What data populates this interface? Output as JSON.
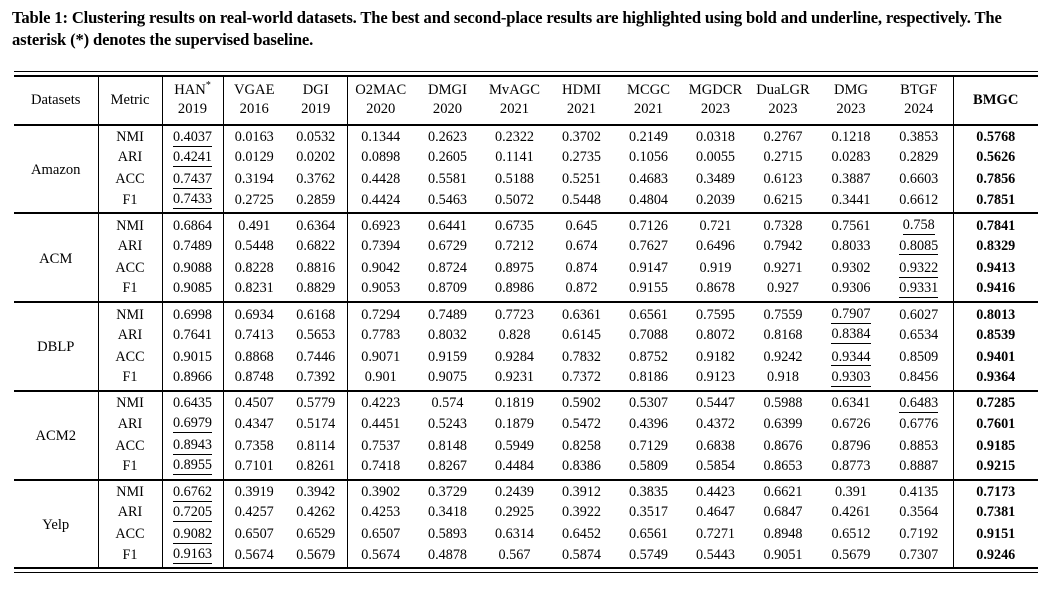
{
  "caption": {
    "text": "Table 1: Clustering results on real-world datasets. The best and second-place results are highlighted using bold and underline, respectively. The asterisk (*) denotes the supervised baseline."
  },
  "table": {
    "dataset_header": "Datasets",
    "metric_header": "Metric",
    "methods": [
      {
        "name": "HAN*",
        "year": "2019"
      },
      {
        "name": "VGAE",
        "year": "2016"
      },
      {
        "name": "DGI",
        "year": "2019"
      },
      {
        "name": "O2MAC",
        "year": "2020"
      },
      {
        "name": "DMGI",
        "year": "2020"
      },
      {
        "name": "MvAGC",
        "year": "2021"
      },
      {
        "name": "HDMI",
        "year": "2021"
      },
      {
        "name": "MCGC",
        "year": "2021"
      },
      {
        "name": "MGDCR",
        "year": "2023"
      },
      {
        "name": "DuaLGR",
        "year": "2023"
      },
      {
        "name": "DMG",
        "year": "2023"
      },
      {
        "name": "BTGF",
        "year": "2024"
      },
      {
        "name": "BMGC",
        "year": ""
      }
    ],
    "bold_column_index": 12,
    "groups": [
      {
        "dataset": "Amazon",
        "rows": [
          {
            "metric": "NMI",
            "underline_col": 0,
            "values": [
              "0.4037",
              "0.0163",
              "0.0532",
              "0.1344",
              "0.2623",
              "0.2322",
              "0.3702",
              "0.2149",
              "0.0318",
              "0.2767",
              "0.1218",
              "0.3853",
              "0.5768"
            ]
          },
          {
            "metric": "ARI",
            "underline_col": 0,
            "values": [
              "0.4241",
              "0.0129",
              "0.0202",
              "0.0898",
              "0.2605",
              "0.1141",
              "0.2735",
              "0.1056",
              "0.0055",
              "0.2715",
              "0.0283",
              "0.2829",
              "0.5626"
            ]
          },
          {
            "metric": "ACC",
            "underline_col": 0,
            "values": [
              "0.7437",
              "0.3194",
              "0.3762",
              "0.4428",
              "0.5581",
              "0.5188",
              "0.5251",
              "0.4683",
              "0.3489",
              "0.6123",
              "0.3887",
              "0.6603",
              "0.7856"
            ]
          },
          {
            "metric": "F1",
            "underline_col": 0,
            "values": [
              "0.7433",
              "0.2725",
              "0.2859",
              "0.4424",
              "0.5463",
              "0.5072",
              "0.5448",
              "0.4804",
              "0.2039",
              "0.6215",
              "0.3441",
              "0.6612",
              "0.7851"
            ]
          }
        ]
      },
      {
        "dataset": "ACM",
        "rows": [
          {
            "metric": "NMI",
            "underline_col": 11,
            "values": [
              "0.6864",
              "0.491",
              "0.6364",
              "0.6923",
              "0.6441",
              "0.6735",
              "0.645",
              "0.7126",
              "0.721",
              "0.7328",
              "0.7561",
              "0.758",
              "0.7841"
            ]
          },
          {
            "metric": "ARI",
            "underline_col": 11,
            "values": [
              "0.7489",
              "0.5448",
              "0.6822",
              "0.7394",
              "0.6729",
              "0.7212",
              "0.674",
              "0.7627",
              "0.6496",
              "0.7942",
              "0.8033",
              "0.8085",
              "0.8329"
            ]
          },
          {
            "metric": "ACC",
            "underline_col": 11,
            "values": [
              "0.9088",
              "0.8228",
              "0.8816",
              "0.9042",
              "0.8724",
              "0.8975",
              "0.874",
              "0.9147",
              "0.919",
              "0.9271",
              "0.9302",
              "0.9322",
              "0.9413"
            ]
          },
          {
            "metric": "F1",
            "underline_col": 11,
            "values": [
              "0.9085",
              "0.8231",
              "0.8829",
              "0.9053",
              "0.8709",
              "0.8986",
              "0.872",
              "0.9155",
              "0.8678",
              "0.927",
              "0.9306",
              "0.9331",
              "0.9416"
            ]
          }
        ]
      },
      {
        "dataset": "DBLP",
        "rows": [
          {
            "metric": "NMI",
            "underline_col": 10,
            "values": [
              "0.6998",
              "0.6934",
              "0.6168",
              "0.7294",
              "0.7489",
              "0.7723",
              "0.6361",
              "0.6561",
              "0.7595",
              "0.7559",
              "0.7907",
              "0.6027",
              "0.8013"
            ]
          },
          {
            "metric": "ARI",
            "underline_col": 10,
            "values": [
              "0.7641",
              "0.7413",
              "0.5653",
              "0.7783",
              "0.8032",
              "0.828",
              "0.6145",
              "0.7088",
              "0.8072",
              "0.8168",
              "0.8384",
              "0.6534",
              "0.8539"
            ]
          },
          {
            "metric": "ACC",
            "underline_col": 10,
            "values": [
              "0.9015",
              "0.8868",
              "0.7446",
              "0.9071",
              "0.9159",
              "0.9284",
              "0.7832",
              "0.8752",
              "0.9182",
              "0.9242",
              "0.9344",
              "0.8509",
              "0.9401"
            ]
          },
          {
            "metric": "F1",
            "underline_col": 10,
            "values": [
              "0.8966",
              "0.8748",
              "0.7392",
              "0.901",
              "0.9075",
              "0.9231",
              "0.7372",
              "0.8186",
              "0.9123",
              "0.918",
              "0.9303",
              "0.8456",
              "0.9364"
            ]
          }
        ]
      },
      {
        "dataset": "ACM2",
        "rows": [
          {
            "metric": "NMI",
            "underline_col": 11,
            "values": [
              "0.6435",
              "0.4507",
              "0.5779",
              "0.4223",
              "0.574",
              "0.1819",
              "0.5902",
              "0.5307",
              "0.5447",
              "0.5988",
              "0.6341",
              "0.6483",
              "0.7285"
            ]
          },
          {
            "metric": "ARI",
            "underline_col": 0,
            "values": [
              "0.6979",
              "0.4347",
              "0.5174",
              "0.4451",
              "0.5243",
              "0.1879",
              "0.5472",
              "0.4396",
              "0.4372",
              "0.6399",
              "0.6726",
              "0.6776",
              "0.7601"
            ]
          },
          {
            "metric": "ACC",
            "underline_col": 0,
            "values": [
              "0.8943",
              "0.7358",
              "0.8114",
              "0.7537",
              "0.8148",
              "0.5949",
              "0.8258",
              "0.7129",
              "0.6838",
              "0.8676",
              "0.8796",
              "0.8853",
              "0.9185"
            ]
          },
          {
            "metric": "F1",
            "underline_col": 0,
            "values": [
              "0.8955",
              "0.7101",
              "0.8261",
              "0.7418",
              "0.8267",
              "0.4484",
              "0.8386",
              "0.5809",
              "0.5854",
              "0.8653",
              "0.8773",
              "0.8887",
              "0.9215"
            ]
          }
        ]
      },
      {
        "dataset": "Yelp",
        "rows": [
          {
            "metric": "NMI",
            "underline_col": 0,
            "values": [
              "0.6762",
              "0.3919",
              "0.3942",
              "0.3902",
              "0.3729",
              "0.2439",
              "0.3912",
              "0.3835",
              "0.4423",
              "0.6621",
              "0.391",
              "0.4135",
              "0.7173"
            ]
          },
          {
            "metric": "ARI",
            "underline_col": 0,
            "values": [
              "0.7205",
              "0.4257",
              "0.4262",
              "0.4253",
              "0.3418",
              "0.2925",
              "0.3922",
              "0.3517",
              "0.4647",
              "0.6847",
              "0.4261",
              "0.3564",
              "0.7381"
            ]
          },
          {
            "metric": "ACC",
            "underline_col": 0,
            "values": [
              "0.9082",
              "0.6507",
              "0.6529",
              "0.6507",
              "0.5893",
              "0.6314",
              "0.6452",
              "0.6561",
              "0.7271",
              "0.8948",
              "0.6512",
              "0.7192",
              "0.9151"
            ]
          },
          {
            "metric": "F1",
            "underline_col": 0,
            "values": [
              "0.9163",
              "0.5674",
              "0.5679",
              "0.5674",
              "0.4878",
              "0.567",
              "0.5874",
              "0.5749",
              "0.5443",
              "0.9051",
              "0.5679",
              "0.7307",
              "0.9246"
            ]
          }
        ]
      }
    ]
  }
}
